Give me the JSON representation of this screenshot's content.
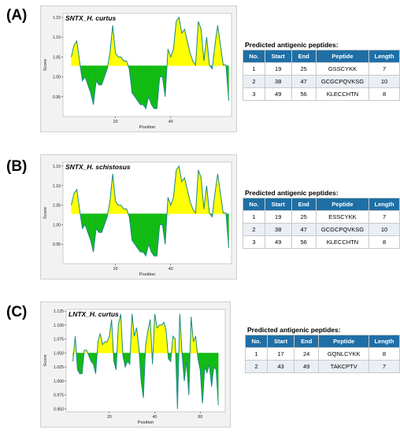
{
  "panels": [
    {
      "letter": "(A)",
      "chart_title": "SNTX_H. curtus",
      "table_title": "Predicted antigenic peptides:",
      "columns": [
        "No.",
        "Start",
        "End",
        "Peptide",
        "Length"
      ],
      "rows": [
        [
          "1",
          "19",
          "25",
          "GSSCYKK",
          "7"
        ],
        [
          "2",
          "38",
          "47",
          "GCGCPQVKSG",
          "10"
        ],
        [
          "3",
          "49",
          "56",
          "KLECCHTN",
          "8"
        ]
      ]
    },
    {
      "letter": "(B)",
      "chart_title": "SNTX_H. schistosus",
      "table_title": "Predicted antigenic peptides:",
      "columns": [
        "No.",
        "Start",
        "End",
        "Peptide",
        "Length"
      ],
      "rows": [
        [
          "1",
          "19",
          "25",
          "ESSCYKK",
          "7"
        ],
        [
          "2",
          "38",
          "47",
          "GCGCPQVKSG",
          "10"
        ],
        [
          "3",
          "49",
          "56",
          "KLECCHTN",
          "8"
        ]
      ]
    },
    {
      "letter": "(C)",
      "chart_title": "LNTX_H. curtus",
      "table_title": "Predicted antigenic peptides:",
      "columns": [
        "No.",
        "Start",
        "End",
        "Peptide",
        "Length"
      ],
      "rows": [
        [
          "1",
          "17",
          "24",
          "GQNLCYKK",
          "8"
        ],
        [
          "2",
          "43",
          "49",
          "TAKCPTV",
          "7"
        ]
      ]
    }
  ],
  "colors": {
    "above": "#ffff00",
    "below": "#11bb11",
    "line": "#1a8a8a",
    "header": "#1f6fa6",
    "plot_bg": "#ffffff"
  },
  "chart_data": [
    {
      "type": "area",
      "title": "SNTX_H. curtus",
      "xlabel": "Position",
      "ylabel": "Score",
      "threshold": 1.028,
      "xlim": [
        1,
        62
      ],
      "ylim": [
        0.9,
        1.16
      ],
      "xticks": [
        20,
        40
      ],
      "yticks": [
        0.95,
        1.0,
        1.05,
        1.1,
        1.15
      ],
      "ytick_labels": [
        "0.95",
        "1.00",
        "1.05",
        "1.10",
        "1.15"
      ],
      "x": [
        4,
        5,
        6,
        7,
        8,
        9,
        10,
        11,
        12,
        13,
        14,
        15,
        16,
        17,
        18,
        19,
        20,
        21,
        22,
        23,
        24,
        25,
        26,
        27,
        28,
        29,
        30,
        31,
        32,
        33,
        34,
        35,
        36,
        37,
        38,
        39,
        40,
        41,
        42,
        43,
        44,
        45,
        46,
        47,
        48,
        49,
        50,
        51,
        52,
        53,
        54,
        55,
        56,
        57,
        58,
        59,
        60,
        61
      ],
      "y": [
        1.05,
        1.08,
        1.09,
        1.04,
        0.99,
        1.0,
        0.98,
        0.96,
        0.93,
        0.99,
        0.98,
        0.98,
        1.0,
        1.02,
        1.06,
        1.13,
        1.06,
        1.05,
        1.05,
        1.04,
        1.04,
        1.02,
        0.96,
        0.95,
        0.94,
        0.93,
        0.93,
        0.92,
        0.95,
        0.93,
        0.92,
        0.92,
        1.0,
        1.0,
        0.95,
        1.07,
        1.05,
        1.07,
        1.14,
        1.15,
        1.11,
        1.12,
        1.09,
        1.06,
        1.04,
        1.03,
        1.14,
        1.12,
        1.04,
        1.1,
        1.03,
        1.02,
        1.08,
        1.13,
        1.08,
        1.03,
        1.03,
        0.94
      ]
    },
    {
      "type": "area",
      "title": "SNTX_H. schistosus",
      "xlabel": "Position",
      "ylabel": "Score",
      "threshold": 1.028,
      "xlim": [
        1,
        62
      ],
      "ylim": [
        0.9,
        1.16
      ],
      "xticks": [
        20,
        40
      ],
      "yticks": [
        0.95,
        1.0,
        1.05,
        1.1,
        1.15
      ],
      "ytick_labels": [
        "0.95",
        "1.00",
        "1.05",
        "1.10",
        "1.15"
      ],
      "x": [
        4,
        5,
        6,
        7,
        8,
        9,
        10,
        11,
        12,
        13,
        14,
        15,
        16,
        17,
        18,
        19,
        20,
        21,
        22,
        23,
        24,
        25,
        26,
        27,
        28,
        29,
        30,
        31,
        32,
        33,
        34,
        35,
        36,
        37,
        38,
        39,
        40,
        41,
        42,
        43,
        44,
        45,
        46,
        47,
        48,
        49,
        50,
        51,
        52,
        53,
        54,
        55,
        56,
        57,
        58,
        59,
        60,
        61
      ],
      "y": [
        1.05,
        1.08,
        1.09,
        1.04,
        0.99,
        1.0,
        0.98,
        0.96,
        0.93,
        0.99,
        0.98,
        0.98,
        1.0,
        1.02,
        1.06,
        1.13,
        1.06,
        1.05,
        1.05,
        1.04,
        1.04,
        1.02,
        0.96,
        0.95,
        0.94,
        0.93,
        0.93,
        0.92,
        0.95,
        0.93,
        0.92,
        0.92,
        1.0,
        1.0,
        0.95,
        1.07,
        1.05,
        1.07,
        1.14,
        1.15,
        1.11,
        1.12,
        1.09,
        1.06,
        1.04,
        1.03,
        1.14,
        1.12,
        1.04,
        1.1,
        1.03,
        1.02,
        1.08,
        1.13,
        1.08,
        1.03,
        1.03,
        0.94
      ]
    },
    {
      "type": "area",
      "title": "LNTX_H. curtus",
      "xlabel": "Position",
      "ylabel": "Score",
      "threshold": 1.05,
      "xlim": [
        1,
        71
      ],
      "ylim": [
        0.945,
        1.128
      ],
      "xticks": [
        20,
        40,
        60
      ],
      "yticks": [
        0.95,
        0.975,
        1.0,
        1.025,
        1.05,
        1.075,
        1.1,
        1.125
      ],
      "ytick_labels": [
        "0.950",
        "0.975",
        "1.000",
        "1.025",
        "1.050",
        "1.075",
        "1.100",
        "1.125"
      ],
      "x": [
        4,
        5,
        6,
        7,
        8,
        9,
        10,
        11,
        12,
        13,
        14,
        15,
        16,
        17,
        18,
        19,
        20,
        21,
        22,
        23,
        24,
        25,
        26,
        27,
        28,
        29,
        30,
        31,
        32,
        33,
        34,
        35,
        36,
        37,
        38,
        39,
        40,
        41,
        42,
        43,
        44,
        45,
        46,
        47,
        48,
        49,
        50,
        51,
        52,
        53,
        54,
        55,
        56,
        57,
        58,
        59,
        60,
        61,
        62,
        63,
        64,
        65,
        66,
        67,
        68
      ],
      "y": [
        1.035,
        1.08,
        1.02,
        1.013,
        1.013,
        1.055,
        1.055,
        1.045,
        1.035,
        1.03,
        1.013,
        1.07,
        1.085,
        1.065,
        1.07,
        1.07,
        1.08,
        1.11,
        1.035,
        1.02,
        1.1,
        1.12,
        1.045,
        1.025,
        1.035,
        1.03,
        1.12,
        1.08,
        1.095,
        1.06,
        1.0,
        0.97,
        1.065,
        1.09,
        1.11,
        1.03,
        1.12,
        1.095,
        1.1,
        1.1,
        1.105,
        1.09,
        1.04,
        1.035,
        1.08,
        1.075,
        0.95,
        1.12,
        1.05,
        1.0,
        1.035,
        0.975,
        1.115,
        1.07,
        1.08,
        1.04,
        1.02,
        0.96,
        1.025,
        1.015,
        1.03,
        0.99,
        1.025,
        1.02,
        0.957
      ]
    }
  ]
}
